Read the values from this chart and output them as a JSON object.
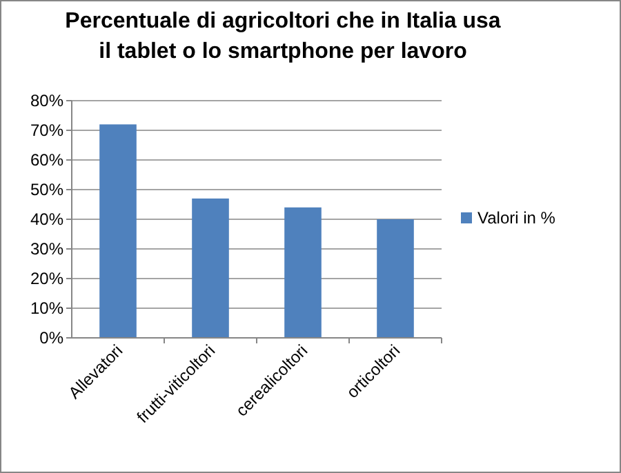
{
  "chart_data": {
    "type": "bar",
    "title": "Percentuale di agricoltori che in Italia usa il tablet o lo smartphone per lavoro",
    "categories": [
      "Allevatori",
      "frutti-viticoltori",
      "cerealicoltori",
      "orticoltori"
    ],
    "series": [
      {
        "name": "Valori in %",
        "color": "#4f81bd",
        "values": [
          72,
          47,
          44,
          40
        ]
      }
    ],
    "ylim": [
      0,
      80
    ],
    "yticks": [
      {
        "value": 0,
        "label": "0%"
      },
      {
        "value": 10,
        "label": "10%"
      },
      {
        "value": 20,
        "label": "20%"
      },
      {
        "value": 30,
        "label": "30%"
      },
      {
        "value": 40,
        "label": "40%"
      },
      {
        "value": 50,
        "label": "50%"
      },
      {
        "value": 60,
        "label": "60%"
      },
      {
        "value": 70,
        "label": "70%"
      },
      {
        "value": 80,
        "label": "80%"
      }
    ],
    "grid": "y",
    "legend": "right"
  }
}
